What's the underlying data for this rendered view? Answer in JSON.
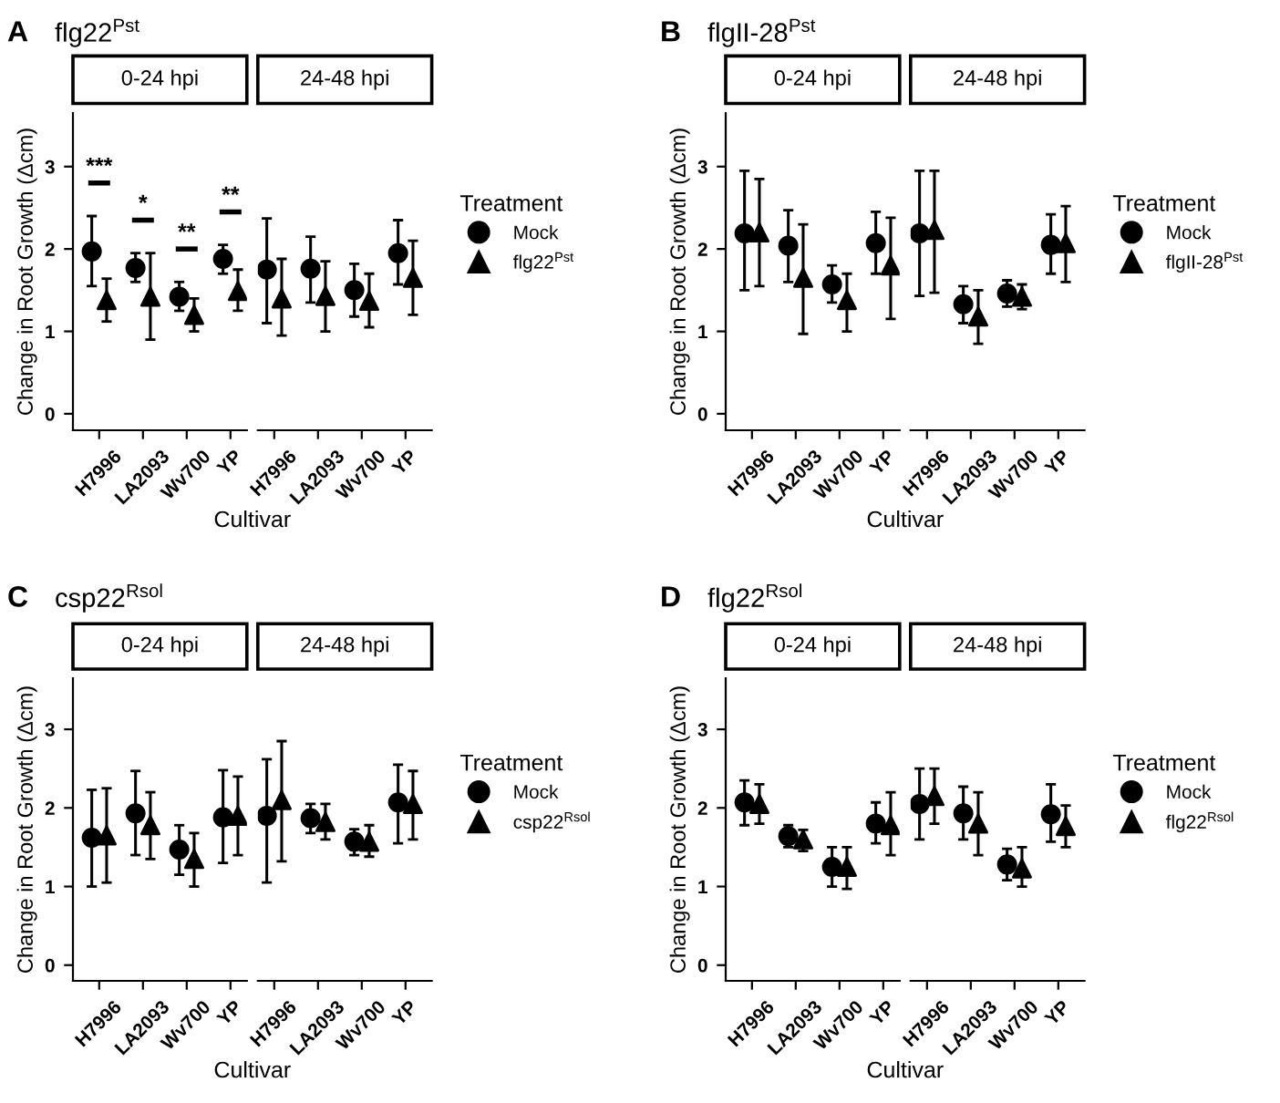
{
  "chart_data": [
    {
      "type": "scatter",
      "title": "flg22$^{Pst}$",
      "xlabel": "Cultivar",
      "ylabel": "Change in Root Growth (Δcm)",
      "categories": [
        "H7996",
        "LA2093",
        "Wv700",
        "YP",
        "H7996",
        "LA2093",
        "Wv700",
        "YP"
      ],
      "ylim": [
        -0.2,
        3.65
      ],
      "yticks": [
        0,
        1,
        2,
        3
      ],
      "grid": false,
      "legend": "right",
      "legend_title": "Treatment",
      "annotations": [
        "A",
        "0-24 hpi",
        "24-48 hpi",
        "***",
        "*",
        "**",
        "**"
      ],
      "series": [
        {
          "name": "Mock",
          "color": "#000000",
          "marker": "circle",
          "values": [
            1.97,
            1.77,
            1.42,
            1.88,
            1.75,
            1.76,
            1.5,
            1.95
          ],
          "errors": [
            [
              1.55,
              2.4
            ],
            [
              1.6,
              1.95
            ],
            [
              1.25,
              1.6
            ],
            [
              1.7,
              2.05
            ],
            [
              1.1,
              2.37
            ],
            [
              1.35,
              2.15
            ],
            [
              1.18,
              1.82
            ],
            [
              1.57,
              2.35
            ]
          ]
        },
        {
          "name": "flg22$^{Pst}$",
          "color": "#000000",
          "marker": "triangle",
          "values": [
            1.38,
            1.42,
            1.2,
            1.49,
            1.4,
            1.43,
            1.37,
            1.65
          ],
          "errors": [
            [
              1.12,
              1.64
            ],
            [
              0.9,
              1.95
            ],
            [
              1.0,
              1.4
            ],
            [
              1.25,
              1.75
            ],
            [
              0.95,
              1.88
            ],
            [
              1.0,
              1.85
            ],
            [
              1.05,
              1.7
            ],
            [
              1.2,
              2.1
            ]
          ]
        }
      ]
    },
    {
      "type": "scatter",
      "title": "flgII-28$^{Pst}$",
      "xlabel": "Cultivar",
      "ylabel": "Change in Root Growth (Δcm)",
      "categories": [
        "H7996",
        "LA2093",
        "Wv700",
        "YP",
        "H7996",
        "LA2093",
        "Wv700",
        "YP"
      ],
      "ylim": [
        -0.2,
        3.65
      ],
      "yticks": [
        0,
        1,
        2,
        3
      ],
      "grid": false,
      "legend": "right",
      "legend_title": "Treatment",
      "annotations": [
        "B",
        "0-24 hpi",
        "24-48 hpi"
      ],
      "series": [
        {
          "name": "Mock",
          "color": "#000000",
          "marker": "circle",
          "values": [
            2.19,
            2.04,
            1.57,
            2.07,
            2.19,
            1.33,
            1.46,
            2.05
          ],
          "errors": [
            [
              1.5,
              2.95
            ],
            [
              1.6,
              2.47
            ],
            [
              1.35,
              1.8
            ],
            [
              1.7,
              2.45
            ],
            [
              1.43,
              2.95
            ],
            [
              1.1,
              1.55
            ],
            [
              1.3,
              1.62
            ],
            [
              1.7,
              2.42
            ]
          ]
        },
        {
          "name": "flgII-28$^{Pst}$",
          "color": "#000000",
          "marker": "triangle",
          "values": [
            2.2,
            1.65,
            1.38,
            1.8,
            2.23,
            1.18,
            1.42,
            2.07
          ],
          "errors": [
            [
              1.55,
              2.85
            ],
            [
              0.97,
              2.3
            ],
            [
              1.0,
              1.7
            ],
            [
              1.15,
              2.38
            ],
            [
              1.47,
              2.95
            ],
            [
              0.85,
              1.5
            ],
            [
              1.27,
              1.57
            ],
            [
              1.6,
              2.52
            ]
          ]
        }
      ]
    },
    {
      "type": "scatter",
      "title": "csp22$^{Rsol}$",
      "xlabel": "Cultivar",
      "ylabel": "Change in Root Growth (Δcm)",
      "categories": [
        "H7996",
        "LA2093",
        "Wv700",
        "YP",
        "H7996",
        "LA2093",
        "Wv700",
        "YP"
      ],
      "ylim": [
        -0.2,
        3.65
      ],
      "yticks": [
        0,
        1,
        2,
        3
      ],
      "grid": false,
      "legend": "right",
      "legend_title": "Treatment",
      "annotations": [
        "C",
        "0-24 hpi",
        "24-48 hpi"
      ],
      "series": [
        {
          "name": "Mock",
          "color": "#000000",
          "marker": "circle",
          "values": [
            1.62,
            1.93,
            1.47,
            1.88,
            1.9,
            1.87,
            1.57,
            2.07
          ],
          "errors": [
            [
              1.0,
              2.23
            ],
            [
              1.4,
              2.47
            ],
            [
              1.15,
              1.78
            ],
            [
              1.3,
              2.48
            ],
            [
              1.05,
              2.62
            ],
            [
              1.68,
              2.05
            ],
            [
              1.4,
              1.73
            ],
            [
              1.55,
              2.55
            ]
          ]
        },
        {
          "name": "csp22$^{Rsol}$",
          "color": "#000000",
          "marker": "triangle",
          "values": [
            1.65,
            1.78,
            1.35,
            1.9,
            2.1,
            1.82,
            1.57,
            2.05
          ],
          "errors": [
            [
              1.05,
              2.25
            ],
            [
              1.35,
              2.2
            ],
            [
              1.0,
              1.68
            ],
            [
              1.4,
              2.4
            ],
            [
              1.32,
              2.85
            ],
            [
              1.6,
              2.05
            ],
            [
              1.38,
              1.78
            ],
            [
              1.6,
              2.47
            ]
          ]
        }
      ]
    },
    {
      "type": "scatter",
      "title": "flg22$^{Rsol}$",
      "xlabel": "Cultivar",
      "ylabel": "Change in Root Growth (Δcm)",
      "categories": [
        "H7996",
        "LA2093",
        "Wv700",
        "YP",
        "H7996",
        "LA2093",
        "Wv700",
        "YP"
      ],
      "ylim": [
        -0.2,
        3.65
      ],
      "yticks": [
        0,
        1,
        2,
        3
      ],
      "grid": false,
      "legend": "right",
      "legend_title": "Treatment",
      "annotations": [
        "D",
        "0-24 hpi",
        "24-48 hpi"
      ],
      "series": [
        {
          "name": "Mock",
          "color": "#000000",
          "marker": "circle",
          "values": [
            2.07,
            1.64,
            1.25,
            1.8,
            2.05,
            1.93,
            1.28,
            1.92
          ],
          "errors": [
            [
              1.78,
              2.35
            ],
            [
              1.5,
              1.78
            ],
            [
              1.0,
              1.5
            ],
            [
              1.55,
              2.07
            ],
            [
              1.6,
              2.5
            ],
            [
              1.6,
              2.27
            ],
            [
              1.08,
              1.48
            ],
            [
              1.57,
              2.3
            ]
          ]
        },
        {
          "name": "flg22$^{Rsol}$",
          "color": "#000000",
          "marker": "triangle",
          "values": [
            2.05,
            1.6,
            1.25,
            1.78,
            2.15,
            1.8,
            1.23,
            1.77
          ],
          "errors": [
            [
              1.8,
              2.3
            ],
            [
              1.45,
              1.72
            ],
            [
              0.97,
              1.5
            ],
            [
              1.4,
              2.2
            ],
            [
              1.8,
              2.5
            ],
            [
              1.4,
              2.2
            ],
            [
              1.0,
              1.5
            ],
            [
              1.5,
              2.03
            ]
          ]
        }
      ]
    }
  ]
}
